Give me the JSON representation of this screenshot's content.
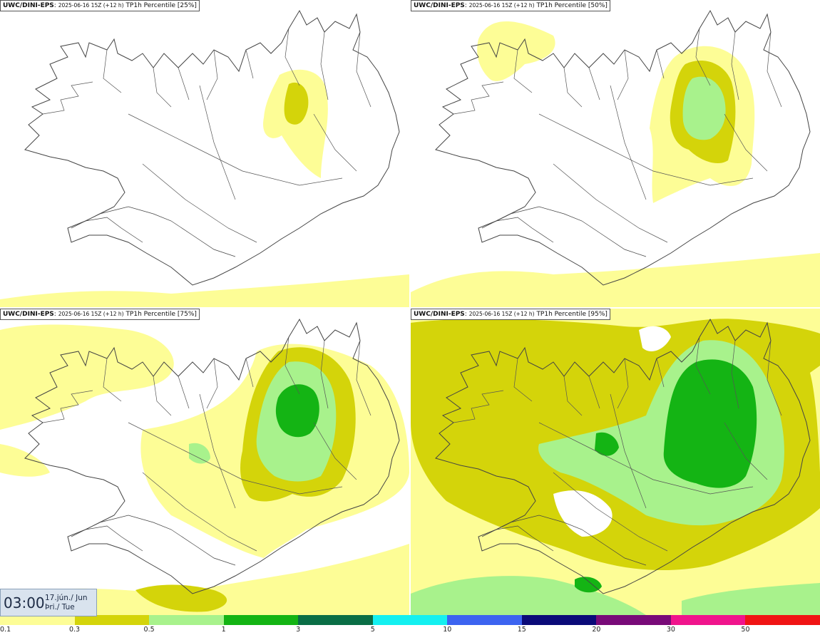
{
  "panels": [
    {
      "source": "UWC/DINI-EPS",
      "run": "2025-06-16 15Z (+12 h)",
      "field": "TP1h Percentile [25%]"
    },
    {
      "source": "UWC/DINI-EPS",
      "run": "2025-06-16 15Z (+12 h)",
      "field": "TP1h Percentile [50%]"
    },
    {
      "source": "UWC/DINI-EPS",
      "run": "2025-06-16 15Z (+12 h)",
      "field": "TP1h Percentile [75%]"
    },
    {
      "source": "UWC/DINI-EPS",
      "run": "2025-06-16 15Z (+12 h)",
      "field": "TP1h Percentile [95%]"
    }
  ],
  "valid_time": {
    "time": "03:00",
    "date_line1": "17.jún./ Jun",
    "date_line2": "Þri./ Tue"
  },
  "colorbar": {
    "colors": [
      "#fdfd96",
      "#d4d40a",
      "#a8f28c",
      "#14b414",
      "#0a6e46",
      "#14f0f0",
      "#3c64f0",
      "#0a0a78",
      "#780a78",
      "#f0148c",
      "#f01414"
    ],
    "ticks": [
      "0.1",
      "0.3",
      "0.5",
      "1",
      "3",
      "5",
      "10",
      "15",
      "20",
      "30",
      "50"
    ]
  },
  "colors": {
    "light_yellow": "#fdfd96",
    "olive": "#d4d40a",
    "light_green": "#a8f28c",
    "green": "#14b414",
    "coast": "#444444"
  }
}
